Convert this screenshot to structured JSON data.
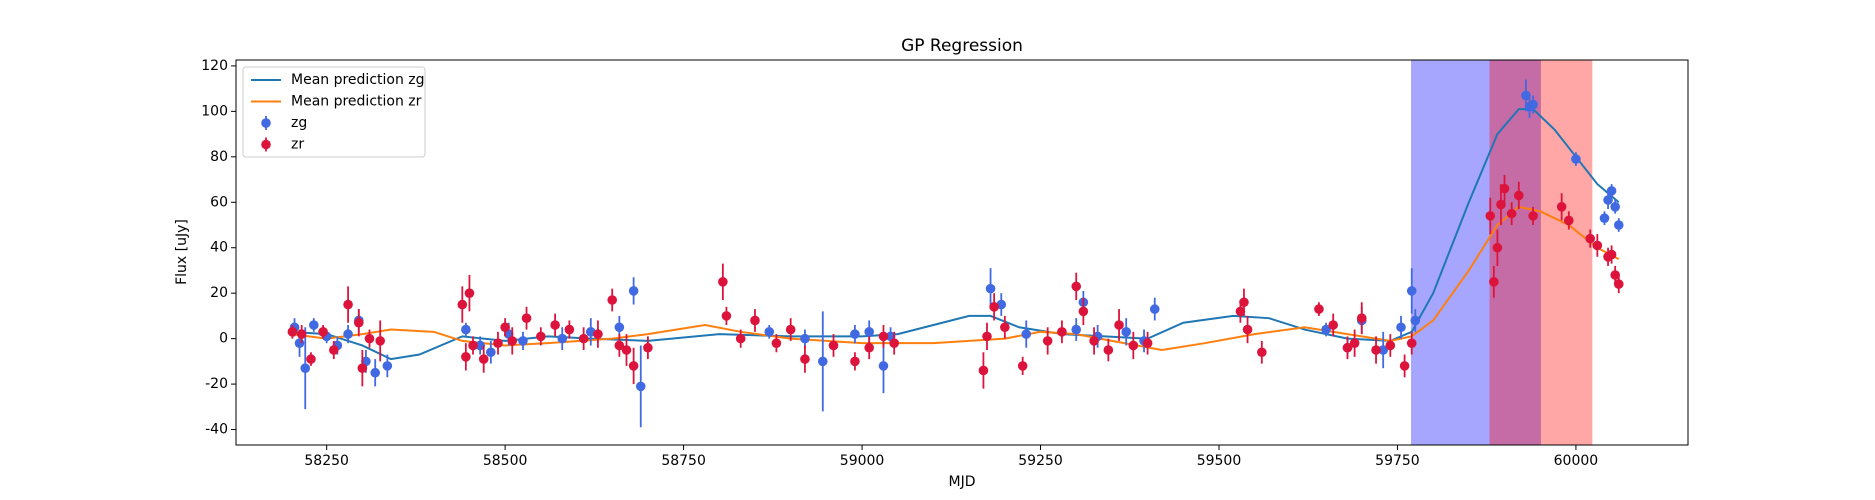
{
  "chart_data": {
    "type": "errorbar",
    "title": "GP Regression",
    "xlabel": "MJD",
    "ylabel": "Flux [uJy]",
    "xlim": [
      58123,
      60157
    ],
    "ylim": [
      -46.8,
      122.6
    ],
    "xticks": [
      58250,
      58500,
      58750,
      59000,
      59250,
      59500,
      59750,
      60000
    ],
    "yticks": [
      -40,
      -20,
      0,
      20,
      40,
      60,
      80,
      100,
      120
    ],
    "legend": "upper left",
    "spans": [
      {
        "x0": 59769,
        "x1": 59951,
        "color": "#0000ff",
        "alpha": 0.35
      },
      {
        "x0": 59879,
        "x1": 60023,
        "color": "#ff0000",
        "alpha": 0.35
      }
    ],
    "series": [
      {
        "name": "Mean prediction zg",
        "type": "line",
        "color": "#1f77b4",
        "x": [
          58200,
          58250,
          58300,
          58340,
          58380,
          58440,
          58500,
          58560,
          58620,
          58700,
          58800,
          58900,
          59000,
          59050,
          59100,
          59150,
          59180,
          59220,
          59280,
          59340,
          59400,
          59450,
          59520,
          59570,
          59620,
          59680,
          59740,
          59770,
          59800,
          59850,
          59890,
          59920,
          59940,
          59970,
          60000,
          60030,
          60060
        ],
        "values": [
          3,
          2,
          -3,
          -9,
          -7,
          1,
          -1,
          1,
          0,
          -1,
          2,
          1,
          1,
          2,
          6,
          10,
          10,
          5,
          2,
          1,
          0,
          7,
          10,
          9,
          4,
          0,
          -1,
          3,
          20,
          60,
          90,
          101,
          101,
          92,
          80,
          68,
          60
        ]
      },
      {
        "name": "Mean prediction zr",
        "type": "line",
        "color": "#ff7f0e",
        "x": [
          58200,
          58250,
          58300,
          58340,
          58400,
          58440,
          58500,
          58560,
          58650,
          58700,
          58780,
          58830,
          58900,
          59000,
          59100,
          59200,
          59250,
          59300,
          59350,
          59420,
          59480,
          59550,
          59620,
          59680,
          59740,
          59770,
          59800,
          59850,
          59890,
          59920,
          59950,
          59990,
          60030,
          60060
        ],
        "values": [
          2,
          0,
          2,
          4,
          3,
          -1,
          -3,
          -2,
          0,
          2,
          6,
          3,
          0,
          -2,
          -2,
          0,
          3,
          2,
          -1,
          -5,
          -2,
          2,
          5,
          2,
          -1,
          1,
          8,
          30,
          50,
          58,
          56,
          50,
          40,
          35
        ]
      },
      {
        "name": "zg",
        "type": "points",
        "color": "#4169e1",
        "x": [
          58205,
          58212,
          58220,
          58232,
          58250,
          58265,
          58280,
          58295,
          58305,
          58318,
          58335,
          58445,
          58465,
          58480,
          58505,
          58525,
          58580,
          58620,
          58660,
          58680,
          58690,
          58870,
          58920,
          58945,
          58990,
          59010,
          59030,
          59040,
          59180,
          59195,
          59230,
          59300,
          59310,
          59330,
          59370,
          59395,
          59410,
          59650,
          59680,
          59700,
          59730,
          59755,
          59770,
          59775,
          59930,
          59935,
          59940,
          60000,
          60040,
          60045,
          60050,
          60055,
          60060
        ],
        "values": [
          5,
          -2,
          -13,
          6,
          1,
          -3,
          2,
          8,
          -10,
          -15,
          -12,
          4,
          -3,
          -6,
          2,
          -1,
          0,
          3,
          5,
          21,
          -21,
          3,
          0,
          -10,
          2,
          3,
          -12,
          1,
          22,
          15,
          2,
          4,
          16,
          1,
          3,
          -1,
          13,
          4,
          -4,
          8,
          -5,
          5,
          21,
          8,
          107,
          102,
          103,
          79,
          53,
          61,
          65,
          58,
          50
        ],
        "errors": [
          4,
          6,
          18,
          3,
          3,
          4,
          4,
          5,
          5,
          6,
          5,
          3,
          4,
          5,
          5,
          4,
          5,
          6,
          5,
          6,
          18,
          3,
          4,
          22,
          4,
          5,
          12,
          4,
          9,
          5,
          6,
          5,
          5,
          5,
          6,
          5,
          5,
          3,
          4,
          6,
          8,
          5,
          10,
          5,
          7,
          5,
          4,
          3,
          3,
          4,
          3,
          3,
          3
        ]
      },
      {
        "name": "zr",
        "type": "points",
        "color": "#dc143c",
        "x": [
          58202,
          58215,
          58228,
          58245,
          58260,
          58280,
          58295,
          58300,
          58310,
          58325,
          58440,
          58445,
          58450,
          58455,
          58470,
          58490,
          58500,
          58510,
          58530,
          58550,
          58570,
          58590,
          58610,
          58630,
          58650,
          58660,
          58670,
          58680,
          58700,
          58805,
          58810,
          58830,
          58850,
          58880,
          58900,
          58920,
          58960,
          58990,
          59010,
          59030,
          59045,
          59170,
          59175,
          59185,
          59200,
          59225,
          59260,
          59280,
          59300,
          59310,
          59325,
          59345,
          59360,
          59380,
          59400,
          59530,
          59535,
          59540,
          59560,
          59640,
          59660,
          59680,
          59690,
          59700,
          59720,
          59740,
          59760,
          59770,
          59880,
          59885,
          59890,
          59895,
          59900,
          59910,
          59920,
          59940,
          59980,
          59990,
          60020,
          60030,
          60045,
          60050,
          60055,
          60060
        ],
        "values": [
          3,
          2,
          -9,
          3,
          -5,
          15,
          7,
          -13,
          0,
          -1,
          15,
          -8,
          20,
          -3,
          -9,
          -2,
          5,
          -1,
          9,
          1,
          6,
          4,
          0,
          2,
          17,
          -3,
          -5,
          -12,
          -4,
          25,
          10,
          0,
          8,
          -2,
          4,
          -9,
          -3,
          -10,
          -4,
          1,
          -2,
          -14,
          1,
          14,
          5,
          -12,
          -1,
          3,
          23,
          12,
          -1,
          -5,
          6,
          -3,
          -2,
          12,
          16,
          4,
          -6,
          13,
          6,
          -4,
          -2,
          9,
          -5,
          -3,
          -12,
          -2,
          54,
          25,
          40,
          59,
          66,
          55,
          63,
          54,
          58,
          52,
          44,
          41,
          36,
          37,
          28,
          24
        ],
        "errors": [
          3,
          4,
          3,
          3,
          4,
          8,
          6,
          8,
          4,
          9,
          8,
          6,
          8,
          4,
          6,
          5,
          4,
          6,
          5,
          4,
          5,
          4,
          5,
          6,
          5,
          5,
          7,
          8,
          5,
          8,
          4,
          4,
          5,
          4,
          5,
          6,
          5,
          4,
          5,
          5,
          5,
          8,
          6,
          6,
          5,
          4,
          6,
          5,
          6,
          6,
          6,
          5,
          7,
          6,
          5,
          5,
          6,
          6,
          5,
          3,
          5,
          5,
          6,
          7,
          6,
          5,
          5,
          5,
          8,
          7,
          8,
          9,
          6,
          5,
          6,
          4,
          6,
          4,
          4,
          5,
          4,
          4,
          4,
          4
        ]
      }
    ]
  }
}
